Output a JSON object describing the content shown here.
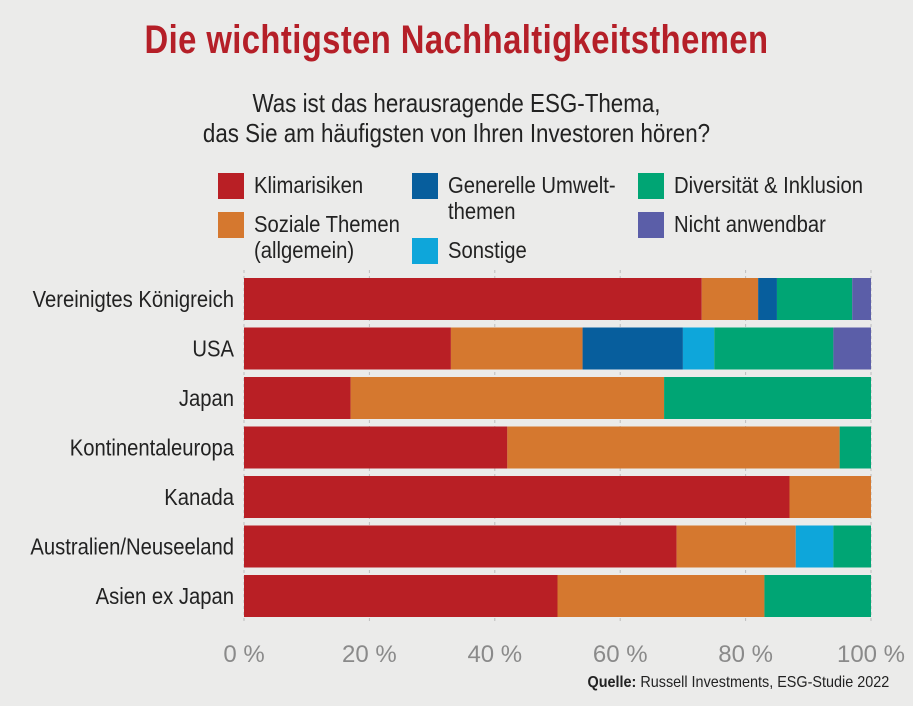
{
  "header": {
    "title": "Die wichtigsten Nachhaltigkeitsthemen",
    "subtitle_line1": "Was ist das herausragende ESG-Thema,",
    "subtitle_line2": "das Sie am häufigsten von Ihren Investoren hören?"
  },
  "source": {
    "label": "Quelle:",
    "text": "Russell Investments, ESG-Studie 2022"
  },
  "chart_data": {
    "type": "bar",
    "orientation": "horizontal",
    "stacked": true,
    "title": "Die wichtigsten Nachhaltigkeitsthemen",
    "subtitle": "Was ist das herausragende ESG-Thema, das Sie am häufigsten von Ihren Investoren hören?",
    "categories": [
      "Vereinigtes Königreich",
      "USA",
      "Japan",
      "Kontinentaleuropa",
      "Kanada",
      "Australien/Neuseeland",
      "Asien ex Japan"
    ],
    "series": [
      {
        "name": "Klimarisiken",
        "color": "#b91f25",
        "values": [
          73,
          33,
          17,
          42,
          87,
          69,
          50
        ]
      },
      {
        "name": "Soziale Themen\n(allgemein)",
        "color": "#d5782f",
        "values": [
          9,
          21,
          50,
          53,
          13,
          19,
          33
        ]
      },
      {
        "name": "Generelle Umwelt-\nthemen",
        "color": "#075e9d",
        "values": [
          3,
          16,
          0,
          0,
          0,
          0,
          0
        ]
      },
      {
        "name": "Sonstige",
        "color": "#0ea6da",
        "values": [
          0,
          5,
          0,
          0,
          0,
          6,
          0
        ]
      },
      {
        "name": "Diversität & Inklusion",
        "color": "#00a574",
        "values": [
          12,
          19,
          33,
          5,
          0,
          6,
          17
        ]
      },
      {
        "name": "Nicht anwendbar",
        "color": "#5b5ea8",
        "values": [
          3,
          6,
          0,
          0,
          0,
          0,
          0
        ]
      }
    ],
    "xlim": [
      0,
      100
    ],
    "x_ticks": [
      0,
      20,
      40,
      60,
      80,
      100
    ],
    "x_tick_labels": [
      "0 %",
      "20 %",
      "40 %",
      "60 %",
      "80 %",
      "100 %"
    ],
    "grid": true,
    "legend_position": "top"
  }
}
